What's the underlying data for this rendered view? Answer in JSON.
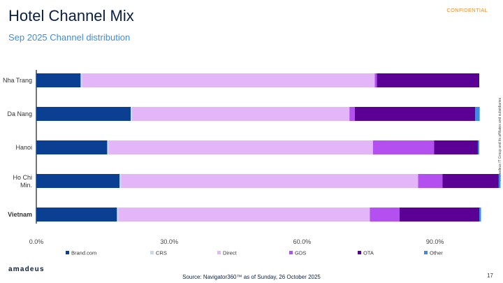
{
  "header": {
    "title": "Hotel Channel Mix",
    "subtitle": "Sep 2025 Channel distribution",
    "confidential": "CONFIDENTIAL",
    "side_note": "© Amadeus IT Group and its affiliates and subsidiaries"
  },
  "footer": {
    "logo": "amadeus",
    "source": "Source: Navigator360™ as of Sunday, 26 October 2025",
    "page_number": "17"
  },
  "chart_data": {
    "type": "bar",
    "orientation": "horizontal",
    "stacked": true,
    "categories": [
      "Nha Trang",
      "Da Nang",
      "Hanoi",
      "Ho Chi Min.",
      "Vietnam"
    ],
    "category_bold": [
      false,
      false,
      false,
      false,
      true
    ],
    "series": [
      {
        "name": "Brand.com",
        "color": "#0b3f91",
        "values": [
          10.0,
          21.3,
          16.0,
          18.8,
          18.2
        ]
      },
      {
        "name": "CRS",
        "color": "#c6d9f1",
        "values": [
          0.3,
          0.3,
          0.3,
          0.3,
          0.3
        ]
      },
      {
        "name": "Direct",
        "color": "#e2b6f7",
        "values": [
          66.1,
          49.1,
          59.7,
          67.1,
          56.8
        ]
      },
      {
        "name": "GDS",
        "color": "#b44ff0",
        "values": [
          0.5,
          1.2,
          13.8,
          5.5,
          6.7
        ]
      },
      {
        "name": "OTA",
        "color": "#5a0094",
        "values": [
          23.1,
          27.2,
          9.9,
          12.7,
          18.0
        ]
      },
      {
        "name": "Other",
        "color": "#3b8be8",
        "values": [
          0.0,
          1.0,
          0.3,
          0.4,
          0.4
        ]
      }
    ],
    "xlim": [
      0,
      100
    ],
    "xticks": [
      0,
      30,
      60,
      90
    ],
    "xtick_labels": [
      "0.0%",
      "30.0%",
      "60.0%",
      "90.0%"
    ],
    "grid": false,
    "legend_position": "bottom"
  }
}
